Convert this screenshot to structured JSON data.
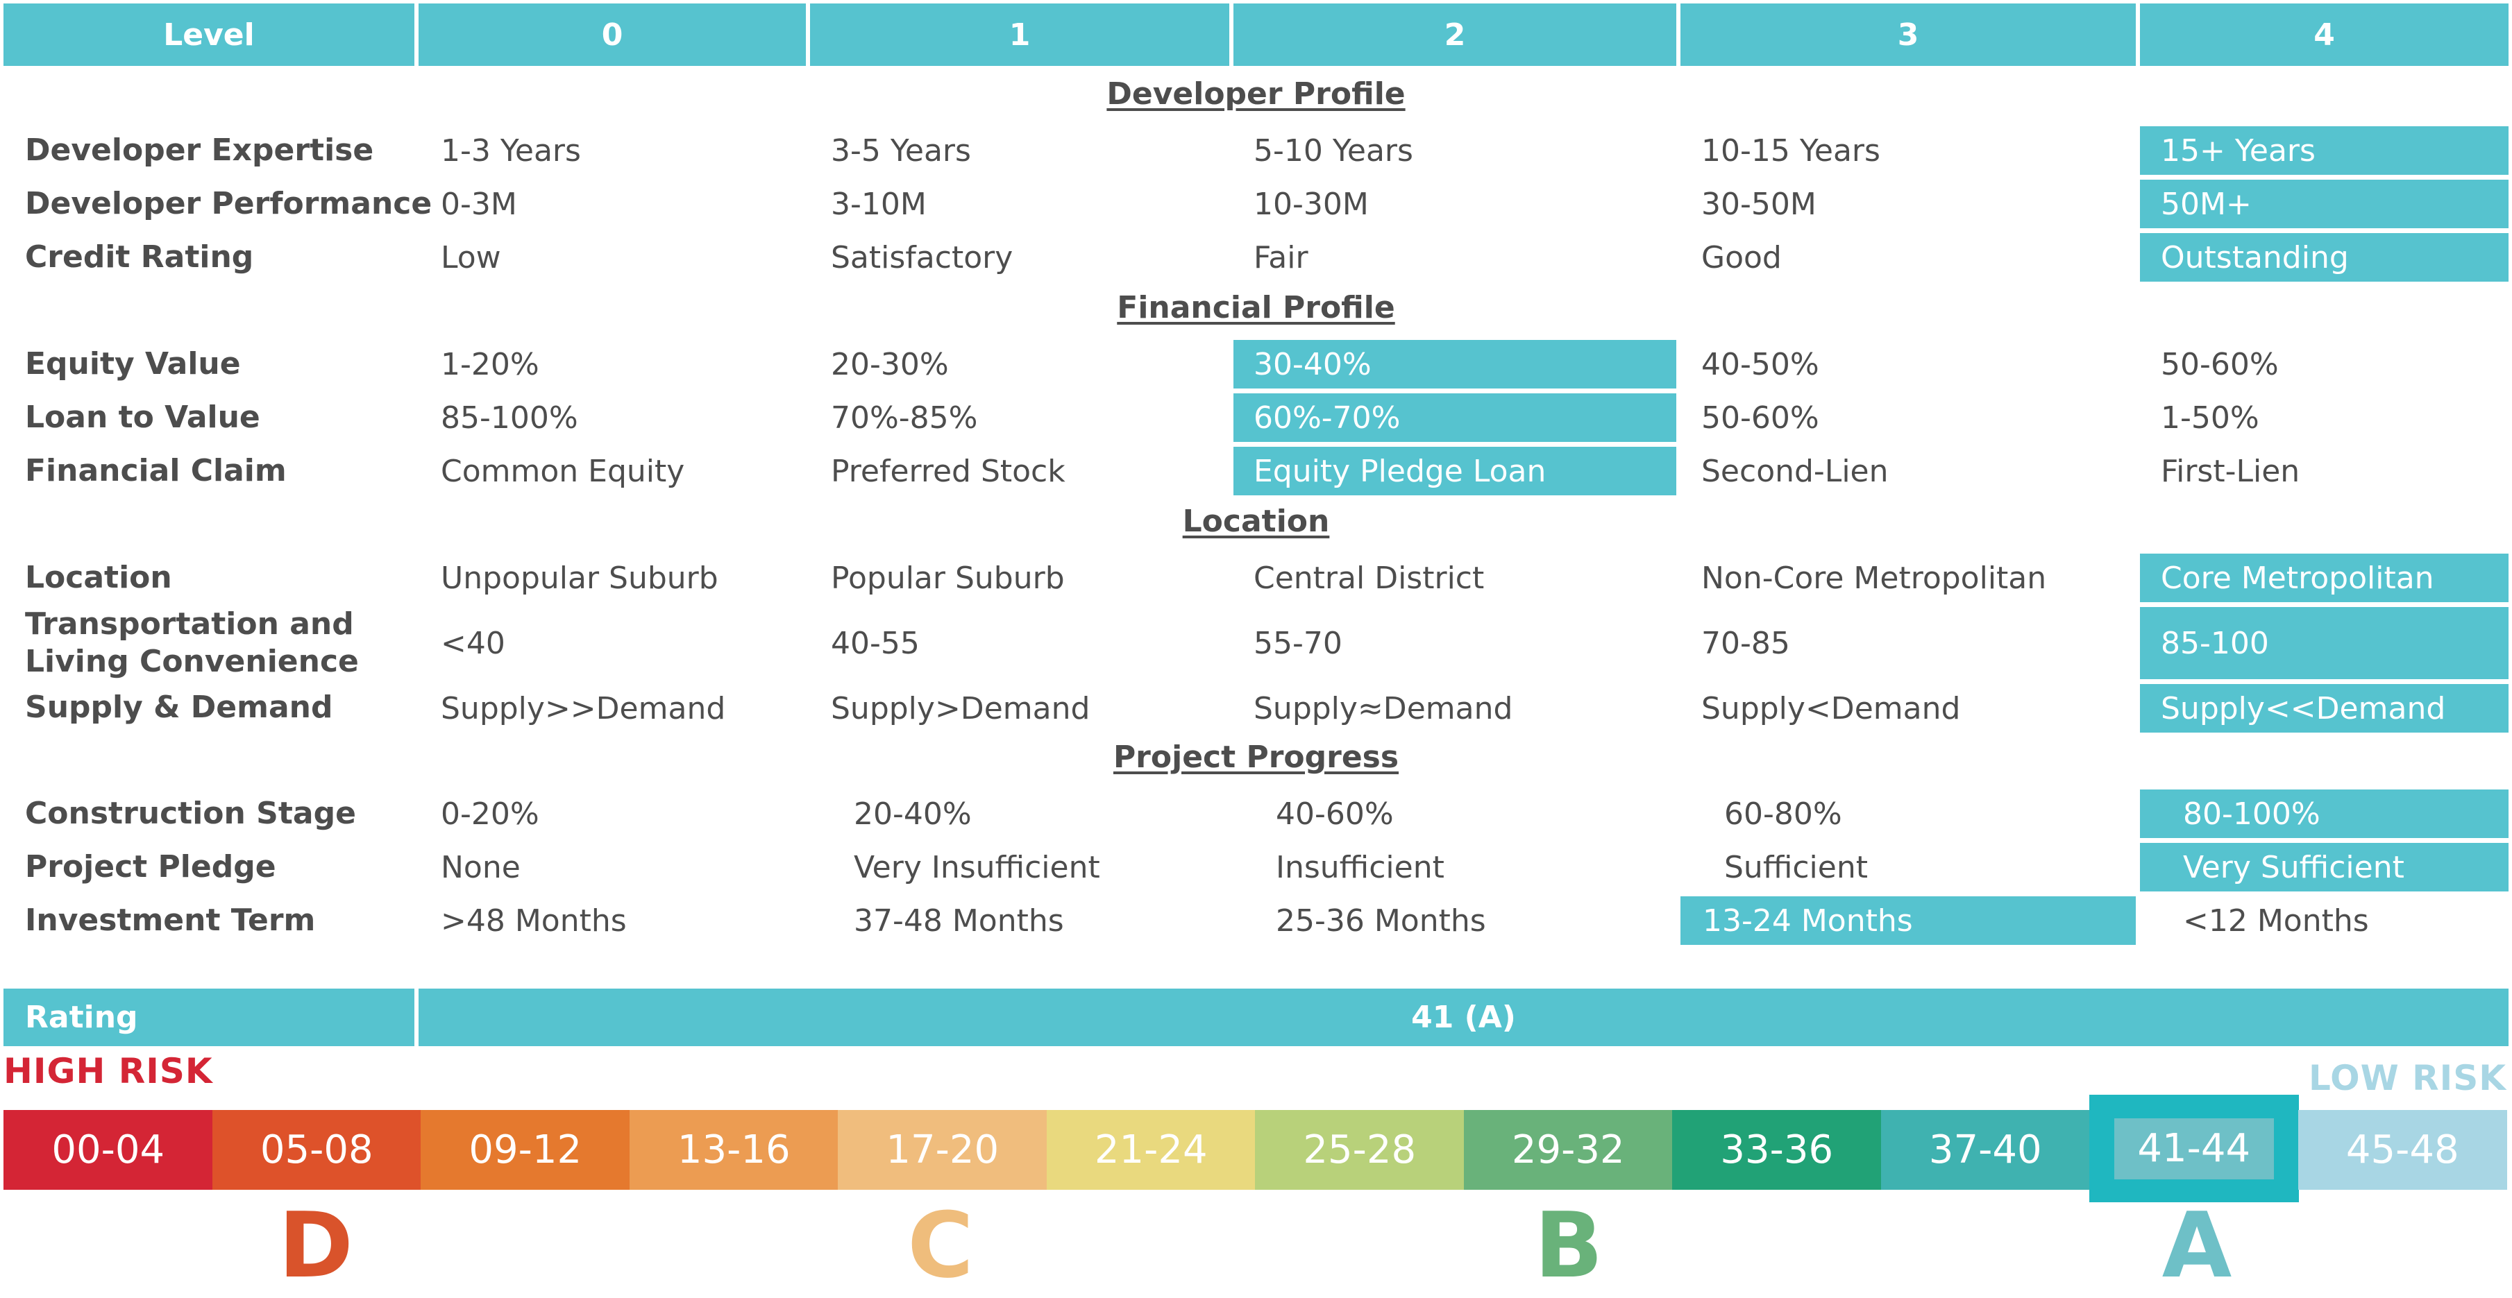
{
  "header": {
    "level_label": "Level",
    "levels": [
      "0",
      "1",
      "2",
      "3",
      "4"
    ]
  },
  "sections": {
    "developer_profile": {
      "title": "Developer Profile",
      "rows": [
        {
          "label": "Developer Expertise",
          "cells": [
            "1-3 Years",
            "3-5 Years",
            "5-10 Years",
            "10-15 Years",
            "15+ Years"
          ],
          "selected": 4
        },
        {
          "label": "Developer Performance",
          "cells": [
            "0-3M",
            "3-10M",
            "10-30M",
            "30-50M",
            "50M+"
          ],
          "selected": 4
        },
        {
          "label": "Credit Rating",
          "cells": [
            "Low",
            "Satisfactory",
            "Fair",
            "Good",
            "Outstanding"
          ],
          "selected": 4
        }
      ]
    },
    "financial_profile": {
      "title": "Financial Profile",
      "rows": [
        {
          "label": "Equity Value",
          "cells": [
            "1-20%",
            "20-30%",
            "30-40%",
            "40-50%",
            "50-60%"
          ],
          "selected": 2
        },
        {
          "label": "Loan to Value",
          "cells": [
            "85-100%",
            "70%-85%",
            "60%-70%",
            "50-60%",
            "1-50%"
          ],
          "selected": 2
        },
        {
          "label": "Financial Claim",
          "cells": [
            "Common Equity",
            "Preferred Stock",
            "Equity Pledge Loan",
            "Second-Lien",
            "First-Lien"
          ],
          "selected": 2
        }
      ]
    },
    "location": {
      "title": "Location",
      "rows": [
        {
          "label": "Location",
          "cells": [
            "Unpopular Suburb",
            "Popular Suburb",
            "Central District",
            "Non-Core Metropolitan",
            "Core Metropolitan"
          ],
          "selected": 4
        },
        {
          "label_line1": "Transportation and",
          "label_line2": "Living Convenience",
          "cells": [
            "<40",
            "40-55",
            "55-70",
            "70-85",
            "85-100"
          ],
          "selected": 4
        },
        {
          "label": "Supply & Demand",
          "cells": [
            "Supply>>Demand",
            "Supply>Demand",
            "Supply≈Demand",
            "Supply<Demand",
            "Supply<<Demand"
          ],
          "selected": 4
        }
      ]
    },
    "project_progress": {
      "title": "Project Progress",
      "rows": [
        {
          "label": "Construction Stage",
          "cells": [
            "0-20%",
            "20-40%",
            "40-60%",
            "60-80%",
            "80-100%"
          ],
          "selected": 4
        },
        {
          "label": "Project Pledge",
          "cells": [
            "None",
            "Very Insufficient",
            "Insufficient",
            "Sufficient",
            "Very Sufficient"
          ],
          "selected": 4
        },
        {
          "label": "Investment Term",
          "cells": [
            ">48 Months",
            "37-48 Months",
            "25-36 Months",
            "13-24 Months",
            "<12 Months"
          ],
          "selected": 3
        }
      ]
    }
  },
  "rating": {
    "label": "Rating",
    "value": "41 (A)"
  },
  "risk_scale": {
    "high_label": "HIGH RISK",
    "low_label": "LOW RISK",
    "high_color": "#d42535",
    "low_color": "#a8d6e4",
    "selected_index": 10,
    "ranges": [
      {
        "label": "00-04",
        "color": "#d42535"
      },
      {
        "label": "05-08",
        "color": "#de522a"
      },
      {
        "label": "09-12",
        "color": "#e5792e"
      },
      {
        "label": "13-16",
        "color": "#ec9c52"
      },
      {
        "label": "17-20",
        "color": "#f0bd7d"
      },
      {
        "label": "21-24",
        "color": "#e9d97e"
      },
      {
        "label": "25-28",
        "color": "#b8d17a"
      },
      {
        "label": "29-32",
        "color": "#69b27a"
      },
      {
        "label": "33-36",
        "color": "#21a276"
      },
      {
        "label": "37-40",
        "color": "#3fb2b0"
      },
      {
        "label": "41-44",
        "color": "#6ec0c7"
      },
      {
        "label": "45-48",
        "color": "#a8d6e4"
      }
    ],
    "grades": [
      {
        "letter": "D",
        "color": "#d9532b"
      },
      {
        "letter": "C",
        "color": "#efbd7c"
      },
      {
        "letter": "B",
        "color": "#69b27a"
      },
      {
        "letter": "A",
        "color": "#6ec0c7"
      }
    ]
  }
}
